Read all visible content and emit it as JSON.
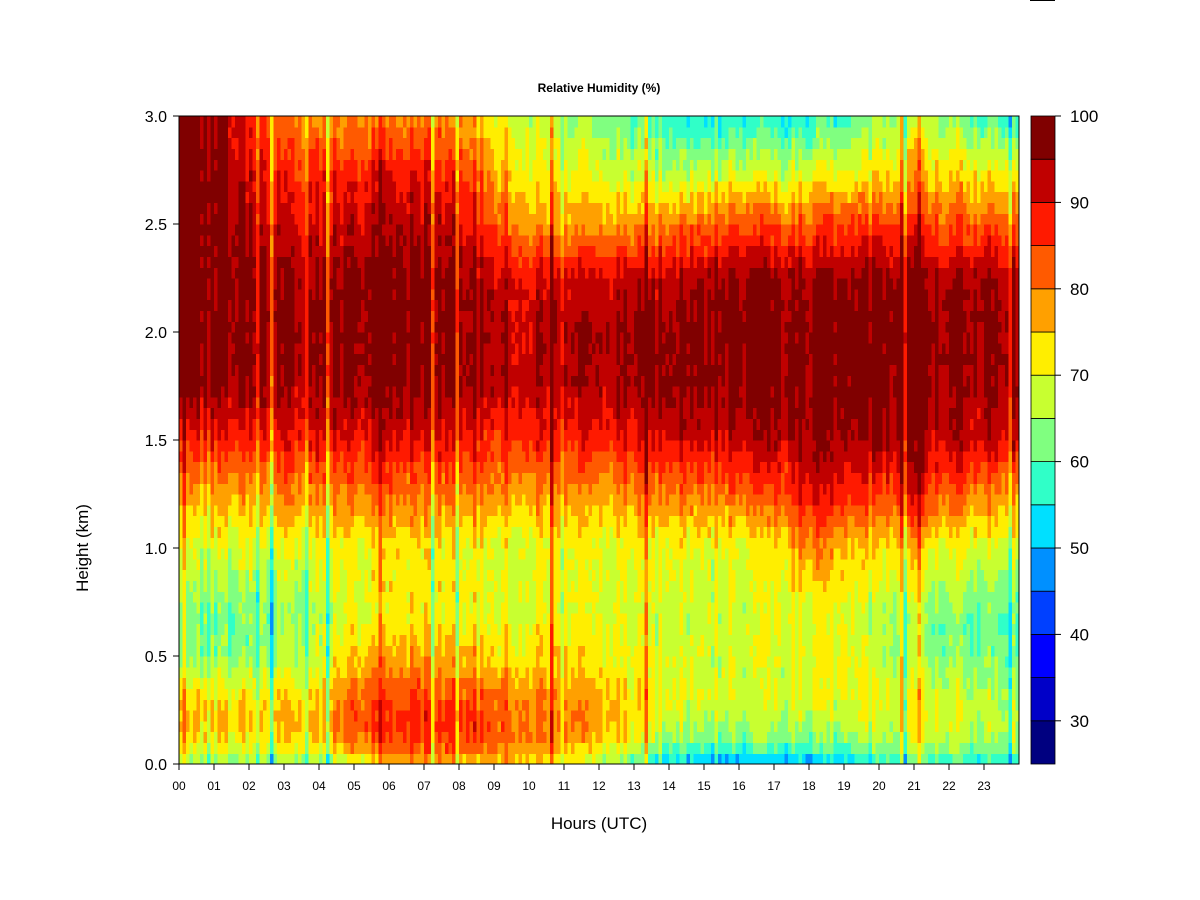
{
  "chart_data": {
    "type": "heatmap",
    "title": "Relative Humidity (%)",
    "xlabel": "Hours (UTC)",
    "ylabel": "Height (km)",
    "xlim": [
      0,
      24
    ],
    "ylim": [
      0.0,
      3.0
    ],
    "x_ticks": [
      "00",
      "01",
      "02",
      "03",
      "04",
      "05",
      "06",
      "07",
      "08",
      "09",
      "10",
      "11",
      "12",
      "13",
      "14",
      "15",
      "16",
      "17",
      "18",
      "19",
      "20",
      "21",
      "22",
      "23"
    ],
    "y_ticks": [
      "0.0",
      "0.5",
      "1.0",
      "1.5",
      "2.0",
      "2.5",
      "3.0"
    ],
    "colorbar": {
      "range": [
        25,
        100
      ],
      "levels": [
        25,
        30,
        35,
        40,
        45,
        50,
        55,
        60,
        65,
        70,
        75,
        80,
        85,
        90,
        95,
        100
      ],
      "colors": [
        "#000080",
        "#0000c8",
        "#0000ff",
        "#0040ff",
        "#0090ff",
        "#00e0ff",
        "#30ffc8",
        "#80ff80",
        "#c8ff30",
        "#ffee00",
        "#ffa000",
        "#ff5a00",
        "#ff1a00",
        "#c00000",
        "#800000"
      ],
      "tick_labels": [
        "30",
        "40",
        "50",
        "60",
        "70",
        "80",
        "90",
        "100"
      ]
    },
    "hourly_profiles": {
      "heights_km": [
        0.0,
        0.1,
        0.2,
        0.3,
        0.5,
        0.7,
        1.0,
        1.25,
        1.5,
        1.75,
        2.0,
        2.25,
        2.5,
        2.75,
        3.0
      ],
      "rh_percent": [
        [
          62,
          72,
          74,
          73,
          63,
          62,
          68,
          76,
          86,
          97,
          98,
          98,
          98,
          98,
          97
        ],
        [
          62,
          72,
          75,
          73,
          63,
          62,
          68,
          77,
          87,
          97,
          98,
          98,
          98,
          98,
          97
        ],
        [
          62,
          73,
          75,
          73,
          64,
          63,
          69,
          78,
          88,
          96,
          97,
          97,
          95,
          92,
          88
        ],
        [
          62,
          73,
          76,
          74,
          66,
          64,
          70,
          79,
          88,
          94,
          96,
          95,
          90,
          86,
          80
        ],
        [
          63,
          74,
          76,
          74,
          67,
          65,
          70,
          79,
          89,
          95,
          96,
          95,
          91,
          86,
          78
        ],
        [
          68,
          80,
          84,
          82,
          75,
          70,
          71,
          80,
          89,
          96,
          97,
          96,
          92,
          87,
          78
        ],
        [
          74,
          83,
          86,
          84,
          76,
          71,
          72,
          81,
          90,
          96,
          97,
          97,
          93,
          88,
          78
        ],
        [
          77,
          85,
          87,
          85,
          78,
          72,
          72,
          81,
          90,
          96,
          97,
          97,
          93,
          88,
          80
        ],
        [
          77,
          85,
          87,
          85,
          77,
          72,
          72,
          81,
          90,
          96,
          97,
          97,
          92,
          87,
          79
        ],
        [
          76,
          84,
          85,
          83,
          75,
          71,
          71,
          80,
          88,
          95,
          95,
          94,
          86,
          78,
          72
        ],
        [
          74,
          80,
          82,
          80,
          74,
          70,
          70,
          78,
          87,
          93,
          93,
          90,
          78,
          72,
          68
        ],
        [
          70,
          77,
          79,
          78,
          73,
          70,
          70,
          78,
          87,
          93,
          94,
          91,
          77,
          70,
          64
        ],
        [
          66,
          75,
          78,
          77,
          72,
          70,
          70,
          78,
          88,
          94,
          95,
          92,
          78,
          70,
          62
        ],
        [
          60,
          70,
          73,
          73,
          71,
          69,
          70,
          79,
          89,
          95,
          96,
          93,
          78,
          68,
          60
        ],
        [
          52,
          64,
          68,
          70,
          69,
          68,
          70,
          80,
          91,
          97,
          97,
          93,
          80,
          66,
          56
        ],
        [
          50,
          62,
          66,
          69,
          69,
          68,
          70,
          81,
          92,
          97,
          98,
          95,
          82,
          67,
          55
        ],
        [
          48,
          61,
          65,
          68,
          68,
          68,
          70,
          81,
          92,
          97,
          98,
          96,
          84,
          68,
          56
        ],
        [
          49,
          62,
          66,
          69,
          69,
          69,
          71,
          83,
          93,
          97,
          98,
          96,
          83,
          67,
          55
        ],
        [
          49,
          62,
          66,
          70,
          70,
          70,
          80,
          91,
          96,
          98,
          98,
          96,
          84,
          69,
          57
        ],
        [
          50,
          63,
          67,
          70,
          70,
          70,
          76,
          88,
          95,
          98,
          98,
          96,
          85,
          70,
          58
        ],
        [
          54,
          65,
          68,
          69,
          67,
          66,
          72,
          84,
          94,
          97,
          98,
          96,
          85,
          72,
          62
        ],
        [
          58,
          67,
          70,
          70,
          66,
          65,
          75,
          89,
          95,
          97,
          98,
          96,
          86,
          76,
          68
        ],
        [
          58,
          67,
          70,
          69,
          64,
          63,
          71,
          83,
          93,
          96,
          97,
          95,
          84,
          74,
          64
        ],
        [
          56,
          65,
          68,
          67,
          62,
          61,
          69,
          80,
          92,
          96,
          97,
          95,
          83,
          72,
          58
        ],
        [
          56,
          65,
          68,
          67,
          62,
          61,
          69,
          80,
          92,
          96,
          97,
          95,
          83,
          72,
          58
        ]
      ]
    }
  }
}
